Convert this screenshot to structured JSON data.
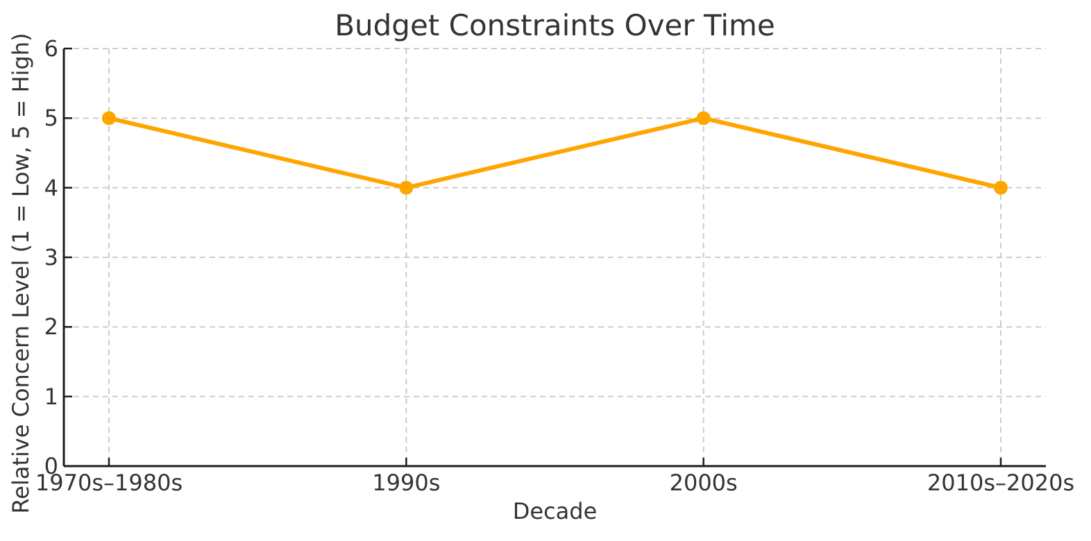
{
  "chart_data": {
    "type": "line",
    "title": "Budget Constraints Over Time",
    "xlabel": "Decade",
    "ylabel": "Relative Concern Level (1 = Low, 5 = High)",
    "categories": [
      "1970s–1980s",
      "1990s",
      "2000s",
      "2010s–2020s"
    ],
    "values": [
      5,
      4,
      5,
      4
    ],
    "ylim": [
      0,
      6
    ],
    "yticks": [
      0,
      1,
      2,
      3,
      4,
      5,
      6
    ],
    "grid": "dashed",
    "legend_position": "none",
    "line_color": "#FFA500",
    "marker": "circle",
    "grid_color": "#CCCCCC",
    "spine_color": "#1C1C1C",
    "text_color": "#333333",
    "background_color": "#FFFFFF"
  }
}
